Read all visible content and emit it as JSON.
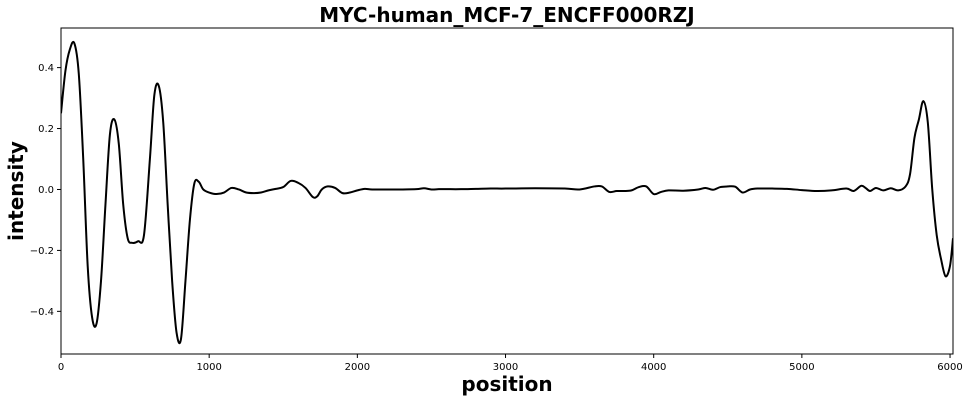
{
  "chart_data": {
    "type": "line",
    "title": "MYC-human_MCF-7_ENCFF000RZJ",
    "xlabel": "position",
    "ylabel": "intensity",
    "xlim": [
      0,
      6020
    ],
    "ylim": [
      -0.54,
      0.53
    ],
    "xticks": [
      0,
      1000,
      2000,
      3000,
      4000,
      5000,
      6000
    ],
    "yticks": [
      -0.4,
      -0.2,
      0.0,
      0.2,
      0.4
    ],
    "xtick_labels": [
      "0",
      "1000",
      "2000",
      "3000",
      "4000",
      "5000",
      "6000"
    ],
    "ytick_labels": [
      "−0.4",
      "−0.2",
      "0.0",
      "0.2",
      "0.4"
    ],
    "grid": false,
    "series": [
      {
        "color": "#000000",
        "x": [
          0,
          30,
          60,
          90,
          120,
          150,
          180,
          210,
          240,
          270,
          300,
          330,
          360,
          390,
          420,
          450,
          480,
          520,
          560,
          600,
          630,
          660,
          690,
          720,
          750,
          780,
          810,
          840,
          870,
          900,
          930,
          960,
          1000,
          1050,
          1100,
          1150,
          1200,
          1250,
          1300,
          1350,
          1400,
          1450,
          1500,
          1550,
          1600,
          1650,
          1700,
          1730,
          1760,
          1800,
          1850,
          1900,
          1950,
          2000,
          2050,
          2100,
          2200,
          2300,
          2400,
          2450,
          2500,
          2550,
          2600,
          2700,
          2800,
          2900,
          3000,
          3200,
          3400,
          3500,
          3600,
          3650,
          3700,
          3750,
          3800,
          3850,
          3900,
          3950,
          4000,
          4050,
          4100,
          4200,
          4300,
          4350,
          4400,
          4450,
          4500,
          4550,
          4600,
          4650,
          4700,
          4800,
          4900,
          5000,
          5100,
          5200,
          5300,
          5350,
          5400,
          5430,
          5460,
          5500,
          5550,
          5600,
          5650,
          5700,
          5730,
          5760,
          5790,
          5820,
          5850,
          5880,
          5910,
          5940,
          5970,
          6000,
          6020
        ],
        "y": [
          0.25,
          0.39,
          0.46,
          0.48,
          0.38,
          0.1,
          -0.25,
          -0.42,
          -0.44,
          -0.3,
          -0.05,
          0.18,
          0.23,
          0.15,
          -0.05,
          -0.16,
          -0.175,
          -0.17,
          -0.15,
          0.1,
          0.31,
          0.34,
          0.22,
          -0.05,
          -0.3,
          -0.47,
          -0.49,
          -0.3,
          -0.1,
          0.02,
          0.025,
          0.0,
          -0.01,
          -0.015,
          -0.01,
          0.005,
          0.0,
          -0.01,
          -0.012,
          -0.01,
          -0.003,
          0.002,
          0.008,
          0.028,
          0.022,
          0.005,
          -0.025,
          -0.022,
          0.0,
          0.01,
          0.005,
          -0.012,
          -0.01,
          -0.003,
          0.002,
          0.0,
          0.0,
          0.0,
          0.001,
          0.004,
          0.0,
          0.001,
          0.001,
          0.001,
          0.002,
          0.003,
          0.003,
          0.004,
          0.003,
          0.0,
          0.01,
          0.01,
          -0.008,
          -0.005,
          -0.005,
          -0.003,
          0.008,
          0.01,
          -0.015,
          -0.008,
          -0.003,
          -0.004,
          0.0,
          0.005,
          -0.001,
          0.008,
          0.01,
          0.009,
          -0.01,
          0.0,
          0.003,
          0.003,
          0.002,
          -0.002,
          -0.005,
          -0.003,
          0.003,
          -0.005,
          0.012,
          0.005,
          -0.005,
          0.005,
          -0.003,
          0.004,
          -0.003,
          0.01,
          0.05,
          0.17,
          0.23,
          0.29,
          0.22,
          0.0,
          -0.15,
          -0.23,
          -0.285,
          -0.25,
          -0.16
        ]
      }
    ]
  }
}
